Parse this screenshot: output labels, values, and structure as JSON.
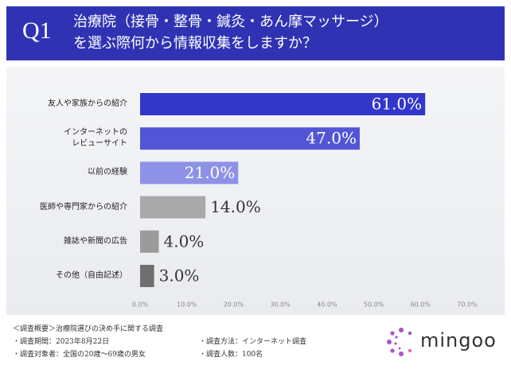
{
  "header": {
    "badge": "Q1",
    "title": "治療院（接骨・整骨・鍼灸・あん摩マッサージ）\nを選ぶ際何から情報収集をしますか？"
  },
  "chart_data": {
    "type": "bar",
    "orientation": "horizontal",
    "categories": [
      "友人や家族からの紹介",
      "インターネットの\nレビューサイト",
      "以前の経験",
      "医師や専門家からの紹介",
      "雑誌や新聞の広告",
      "その他（自由記述）"
    ],
    "values": [
      61.0,
      47.0,
      21.0,
      14.0,
      4.0,
      3.0
    ],
    "value_labels": [
      "61.0%",
      "47.0%",
      "21.0%",
      "14.0%",
      "4.0%",
      "3.0%"
    ],
    "colors": [
      "#3236c9",
      "#5256d6",
      "#8e92e6",
      "#a9a9a9",
      "#9b9b9b",
      "#6f6f6f"
    ],
    "xlim": [
      0,
      70
    ],
    "xticks": [
      {
        "value": 0,
        "label": "0.0%"
      },
      {
        "value": 10,
        "label": "10.0%"
      },
      {
        "value": 20,
        "label": "20.0%"
      },
      {
        "value": 30,
        "label": "30.0%"
      },
      {
        "value": 40,
        "label": "40.0%"
      },
      {
        "value": 50,
        "label": "50.0%"
      },
      {
        "value": 60,
        "label": "60.0%"
      },
      {
        "value": 70,
        "label": "70.0%"
      }
    ],
    "grid": false
  },
  "footer": {
    "lines": [
      "＜調査概要＞治療院選びの決め手に関する調査",
      "・調査期間：2023年8月22日",
      "・調査対象者：全国の20歳～69歳の男女"
    ],
    "right_lines": [
      "・調査方法：インターネット調査",
      "・調査人数：100名"
    ],
    "logo": "mingoo"
  }
}
